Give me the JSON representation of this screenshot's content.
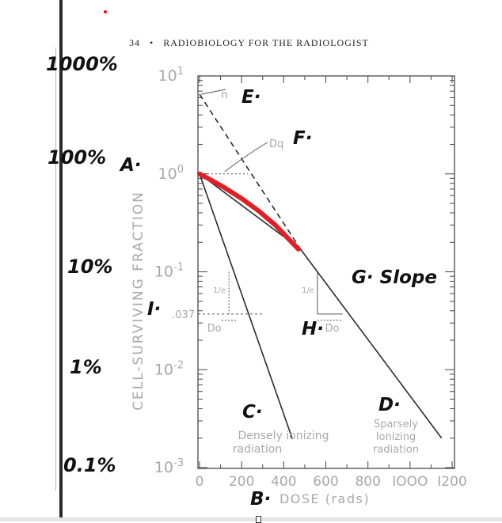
{
  "header": {
    "page_number": "34",
    "bullet": "•",
    "title": "RADIOBIOLOGY FOR THE RADIOLOGIST"
  },
  "percent_labels": [
    "1000%",
    "100%",
    "10%",
    "1%",
    "0.1%"
  ],
  "annotations": {
    "A": "A·",
    "B": "B·",
    "C": "C·",
    "D": "D·",
    "E": "E·",
    "F": "F·",
    "G": "G· Slope",
    "H": "H·",
    "I": "I·"
  },
  "colors": {
    "ink": "#2b2b2b",
    "grid": "#555555",
    "highlight": "#e21f26",
    "grey_scan": "#a9a9a9"
  },
  "chart_data": {
    "type": "line",
    "x_scale": "linear",
    "y_scale": "log",
    "xlim": [
      0,
      1200
    ],
    "ylim": [
      0.001,
      10
    ],
    "x_ticks": [
      0,
      200,
      400,
      600,
      800,
      1000,
      1200
    ],
    "x_tick_labels": [
      "0",
      "200",
      "400",
      "600",
      "800",
      "IOOO",
      "I200"
    ],
    "y_ticks": [
      0.001,
      0.01,
      0.1,
      1,
      10
    ],
    "y_tick_labels": [
      "10-3",
      "10-2",
      "10-1",
      "10^0",
      "10^1"
    ],
    "xlabel": "DOSE (rads)",
    "ylabel": "CELL-SURVIVING FRACTION",
    "special_tick": {
      "y": 0.037,
      "label": ".037"
    },
    "series": [
      {
        "style": "solid",
        "x": [
          0,
          440
        ],
        "y": [
          1,
          0.002
        ]
      },
      {
        "style": "solid",
        "x": [
          0,
          480,
          1150
        ],
        "y": [
          1,
          0.17,
          0.002
        ]
      },
      {
        "style": "dashed",
        "x": [
          0,
          480
        ],
        "y": [
          6.5,
          0.17
        ]
      },
      {
        "style": "red-highlight",
        "x": [
          0,
          40,
          120,
          200,
          280,
          360,
          420,
          470
        ],
        "y": [
          1,
          0.9,
          0.72,
          0.56,
          0.42,
          0.3,
          0.22,
          0.17
        ]
      }
    ],
    "text_labels": {
      "n": "n",
      "dq": "Dq",
      "do_left": "Do",
      "do_right": "Do",
      "one_over_e": "1/e",
      "dense": [
        "Densely ionizing",
        "radiation"
      ],
      "sparse": [
        "Sparsely",
        "Ionizing",
        "radiation"
      ]
    }
  }
}
